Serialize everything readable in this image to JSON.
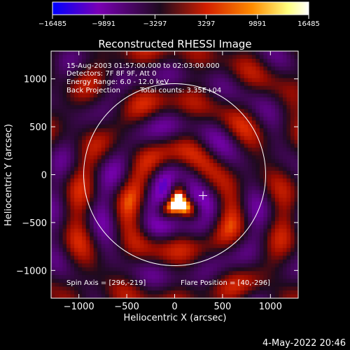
{
  "colorbar": {
    "ticks": [
      -16485,
      -9891,
      -3297,
      3297,
      9891,
      16485
    ],
    "tick_labels": [
      "−16485",
      "−9891",
      "−3297",
      "3297",
      "9891",
      "16485"
    ],
    "range": [
      -16485,
      16485
    ],
    "colors": [
      "#0000ff",
      "#7a00b4",
      "#1e0a1e",
      "#d21e00",
      "#ff8c00",
      "#ffff80",
      "#ffffff"
    ]
  },
  "chart_data": {
    "type": "heatmap",
    "title": "Reconstructed RHESSI Image",
    "xlabel": "Heliocentric X (arcsec)",
    "ylabel": "Heliocentric Y (arcsec)",
    "xlim": [
      -1290,
      1290
    ],
    "ylim": [
      -1290,
      1290
    ],
    "x_ticks": [
      -1000,
      -500,
      0,
      500,
      1000
    ],
    "y_ticks": [
      -1000,
      -500,
      0,
      500,
      1000
    ],
    "x_tick_labels": [
      "−1000",
      "−500",
      "0",
      "500",
      "1000"
    ],
    "y_tick_labels": [
      "−1000",
      "−500",
      "0",
      "500",
      "1000"
    ],
    "solar_radius_arcsec": 950,
    "flare_position": [
      40,
      -296
    ],
    "cross_marker": [
      296,
      -219
    ],
    "annotations": {
      "time_range": "15-Aug-2003 01:57:00.000 to 02:03:00.000",
      "detectors": "Detectors: 7F 8F 9F, Att 0",
      "energy": "Energy Range: 6.0 - 12.0 keV",
      "method": "Back Projection",
      "counts": "Total counts: 3.35E+04",
      "spin_axis": "Spin Axis = [296,-219]",
      "flare_pos": "Flare Position = [40,-296]"
    }
  },
  "footer": {
    "timestamp": "4-May-2022 20:46"
  }
}
